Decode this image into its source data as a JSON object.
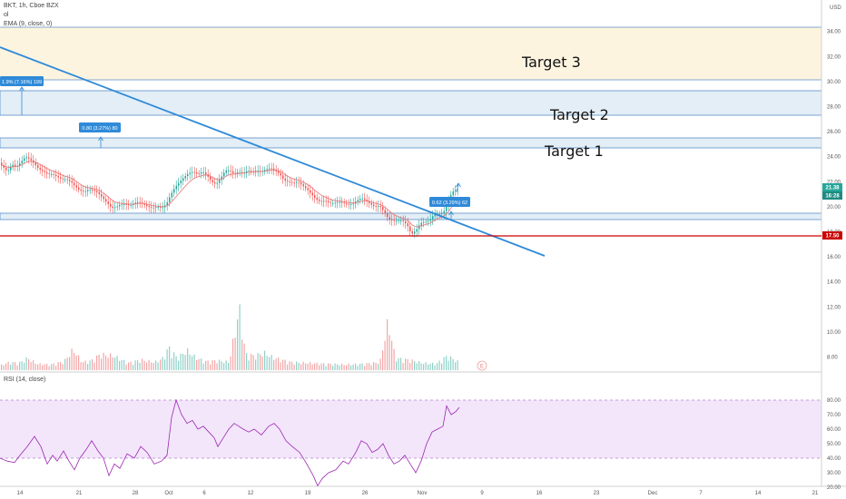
{
  "header": {
    "symbol_line": "BKT, 1h, Cboe BZX",
    "volume_label": "ol",
    "ema_label": "EMA (9, close, 0)",
    "rsi_label": "RSI (14, close)",
    "currency": "USD",
    "earnings_marker": "E"
  },
  "targets": [
    "Target 3",
    "Target 2",
    "Target 1"
  ],
  "badges": {
    "price_last": "21.38",
    "countdown": "16:28",
    "support_price": "17.50",
    "measure_1": "1.9% (7.16%) 199",
    "measure_2": "0.80 (3.27%) 80",
    "measure_3": "0.62 (3.29%) 62"
  },
  "colors": {
    "trendline": "#2f8ad8",
    "support": "#cc0000",
    "up": "#26a69a",
    "down": "#ef5350",
    "zone_target3": "#fdf4e0",
    "zone_target": "#e3eef6",
    "rsi_band": "#f3e6fb",
    "rsi_line": "#9c27b0",
    "ema": "#e57373"
  },
  "chart_data": {
    "type": "candlestick",
    "price_axis": {
      "ticks": [
        34.0,
        32.0,
        30.0,
        28.0,
        26.0,
        24.0,
        22.0,
        20.0,
        18.0,
        16.0,
        14.0,
        12.0,
        10.0,
        8.0
      ],
      "range": [
        6.5,
        35.5
      ]
    },
    "x_ticks": [
      "14",
      "21",
      "28",
      "Oct",
      "6",
      "12",
      "19",
      "26",
      "Nov",
      "9",
      "16",
      "23",
      "Dec",
      "7",
      "14",
      "21"
    ],
    "price_path": [
      [
        0,
        23.6
      ],
      [
        5,
        23.2
      ],
      [
        10,
        22.8
      ],
      [
        15,
        23.4
      ],
      [
        20,
        23.2
      ],
      [
        25,
        23.6
      ],
      [
        30,
        24.0
      ],
      [
        35,
        23.8
      ],
      [
        40,
        23.4
      ],
      [
        45,
        23.0
      ],
      [
        50,
        22.8
      ],
      [
        55,
        22.6
      ],
      [
        60,
        22.6
      ],
      [
        65,
        22.4
      ],
      [
        70,
        22.2
      ],
      [
        75,
        22.2
      ],
      [
        80,
        22.0
      ],
      [
        85,
        21.6
      ],
      [
        90,
        21.3
      ],
      [
        95,
        21.2
      ],
      [
        100,
        21.4
      ],
      [
        105,
        21.3
      ],
      [
        110,
        21.1
      ],
      [
        115,
        20.7
      ],
      [
        120,
        20.3
      ],
      [
        125,
        19.9
      ],
      [
        130,
        20.0
      ],
      [
        135,
        20.2
      ],
      [
        140,
        20.2
      ],
      [
        145,
        20.1
      ],
      [
        150,
        20.3
      ],
      [
        155,
        20.4
      ],
      [
        160,
        20.2
      ],
      [
        165,
        20.0
      ],
      [
        170,
        19.9
      ],
      [
        175,
        20.0
      ],
      [
        180,
        19.9
      ],
      [
        185,
        20.2
      ],
      [
        190,
        21.0
      ],
      [
        195,
        21.6
      ],
      [
        200,
        22.0
      ],
      [
        205,
        22.4
      ],
      [
        210,
        22.7
      ],
      [
        215,
        22.8
      ],
      [
        220,
        22.6
      ],
      [
        225,
        22.8
      ],
      [
        230,
        22.5
      ],
      [
        235,
        22.0
      ],
      [
        240,
        21.8
      ],
      [
        245,
        22.3
      ],
      [
        250,
        22.9
      ],
      [
        255,
        22.9
      ],
      [
        260,
        22.6
      ],
      [
        265,
        22.8
      ],
      [
        270,
        22.7
      ],
      [
        275,
        22.9
      ],
      [
        280,
        22.8
      ],
      [
        285,
        22.9
      ],
      [
        290,
        22.8
      ],
      [
        295,
        23.0
      ],
      [
        300,
        23.1
      ],
      [
        305,
        22.9
      ],
      [
        310,
        22.6
      ],
      [
        315,
        22.1
      ],
      [
        320,
        22.0
      ],
      [
        325,
        21.9
      ],
      [
        330,
        22.0
      ],
      [
        335,
        21.7
      ],
      [
        340,
        21.4
      ],
      [
        345,
        21.0
      ],
      [
        350,
        20.6
      ],
      [
        355,
        20.4
      ],
      [
        360,
        20.5
      ],
      [
        365,
        20.3
      ],
      [
        370,
        20.3
      ],
      [
        375,
        20.4
      ],
      [
        380,
        20.3
      ],
      [
        385,
        20.2
      ],
      [
        390,
        20.2
      ],
      [
        395,
        20.5
      ],
      [
        400,
        20.7
      ],
      [
        405,
        20.5
      ],
      [
        410,
        20.2
      ],
      [
        415,
        20.0
      ],
      [
        420,
        20.1
      ],
      [
        425,
        19.6
      ],
      [
        430,
        19.0
      ],
      [
        435,
        18.9
      ],
      [
        440,
        18.9
      ],
      [
        445,
        18.9
      ],
      [
        450,
        18.6
      ],
      [
        455,
        17.8
      ],
      [
        460,
        18.1
      ],
      [
        465,
        18.7
      ],
      [
        470,
        18.8
      ],
      [
        475,
        18.9
      ],
      [
        480,
        19.4
      ],
      [
        485,
        19.4
      ],
      [
        490,
        19.5
      ],
      [
        495,
        20.3
      ],
      [
        500,
        21.2
      ],
      [
        505,
        21.4
      ]
    ],
    "volume_path": [
      [
        0,
        0.6
      ],
      [
        10,
        1.0
      ],
      [
        20,
        0.9
      ],
      [
        30,
        1.5
      ],
      [
        40,
        0.8
      ],
      [
        55,
        0.7
      ],
      [
        70,
        1.1
      ],
      [
        80,
        2.6
      ],
      [
        90,
        1.0
      ],
      [
        100,
        1.2
      ],
      [
        110,
        2.0
      ],
      [
        125,
        1.8
      ],
      [
        140,
        0.9
      ],
      [
        155,
        1.3
      ],
      [
        170,
        1.0
      ],
      [
        180,
        1.6
      ],
      [
        185,
        2.9
      ],
      [
        195,
        1.5
      ],
      [
        205,
        2.5
      ],
      [
        215,
        1.6
      ],
      [
        225,
        1.1
      ],
      [
        240,
        1.2
      ],
      [
        252,
        1.0
      ],
      [
        263,
        7.8
      ],
      [
        270,
        2.0
      ],
      [
        280,
        1.8
      ],
      [
        290,
        2.2
      ],
      [
        300,
        1.6
      ],
      [
        320,
        1.0
      ],
      [
        340,
        0.9
      ],
      [
        360,
        0.8
      ],
      [
        380,
        0.7
      ],
      [
        400,
        0.8
      ],
      [
        418,
        1.0
      ],
      [
        427,
        6.2
      ],
      [
        435,
        1.5
      ],
      [
        450,
        1.3
      ],
      [
        465,
        0.9
      ],
      [
        480,
        0.8
      ],
      [
        492,
        1.8
      ],
      [
        505,
        1.0
      ]
    ],
    "rsi_axis": {
      "ticks": [
        80.0,
        70.0,
        60.0,
        50.0,
        40.0,
        30.0,
        20.0
      ],
      "overbought": 70,
      "oversold": 30
    },
    "rsi_path": [
      [
        0,
        40
      ],
      [
        8,
        38
      ],
      [
        16,
        37
      ],
      [
        22,
        42
      ],
      [
        30,
        48
      ],
      [
        38,
        55
      ],
      [
        45,
        48
      ],
      [
        52,
        36
      ],
      [
        58,
        42
      ],
      [
        63,
        38
      ],
      [
        70,
        45
      ],
      [
        76,
        38
      ],
      [
        82,
        32
      ],
      [
        88,
        40
      ],
      [
        95,
        46
      ],
      [
        101,
        52
      ],
      [
        108,
        45
      ],
      [
        114,
        40
      ],
      [
        120,
        28
      ],
      [
        126,
        36
      ],
      [
        132,
        33
      ],
      [
        140,
        43
      ],
      [
        148,
        40
      ],
      [
        155,
        48
      ],
      [
        162,
        44
      ],
      [
        170,
        36
      ],
      [
        178,
        38
      ],
      [
        184,
        42
      ],
      [
        189,
        68
      ],
      [
        194,
        80
      ],
      [
        200,
        70
      ],
      [
        206,
        64
      ],
      [
        212,
        66
      ],
      [
        218,
        60
      ],
      [
        224,
        62
      ],
      [
        230,
        58
      ],
      [
        236,
        54
      ],
      [
        240,
        48
      ],
      [
        246,
        54
      ],
      [
        252,
        60
      ],
      [
        258,
        64
      ],
      [
        263,
        62
      ],
      [
        268,
        60
      ],
      [
        274,
        58
      ],
      [
        280,
        60
      ],
      [
        288,
        56
      ],
      [
        296,
        62
      ],
      [
        302,
        64
      ],
      [
        308,
        60
      ],
      [
        315,
        52
      ],
      [
        322,
        48
      ],
      [
        330,
        44
      ],
      [
        338,
        36
      ],
      [
        345,
        28
      ],
      [
        350,
        21
      ],
      [
        355,
        26
      ],
      [
        362,
        30
      ],
      [
        370,
        32
      ],
      [
        378,
        38
      ],
      [
        384,
        36
      ],
      [
        392,
        44
      ],
      [
        398,
        52
      ],
      [
        404,
        50
      ],
      [
        410,
        44
      ],
      [
        416,
        46
      ],
      [
        422,
        50
      ],
      [
        428,
        42
      ],
      [
        434,
        36
      ],
      [
        440,
        38
      ],
      [
        446,
        42
      ],
      [
        452,
        36
      ],
      [
        458,
        30
      ],
      [
        464,
        38
      ],
      [
        470,
        50
      ],
      [
        476,
        58
      ],
      [
        482,
        60
      ],
      [
        488,
        62
      ],
      [
        492,
        76
      ],
      [
        497,
        70
      ],
      [
        502,
        72
      ],
      [
        506,
        75
      ]
    ]
  }
}
